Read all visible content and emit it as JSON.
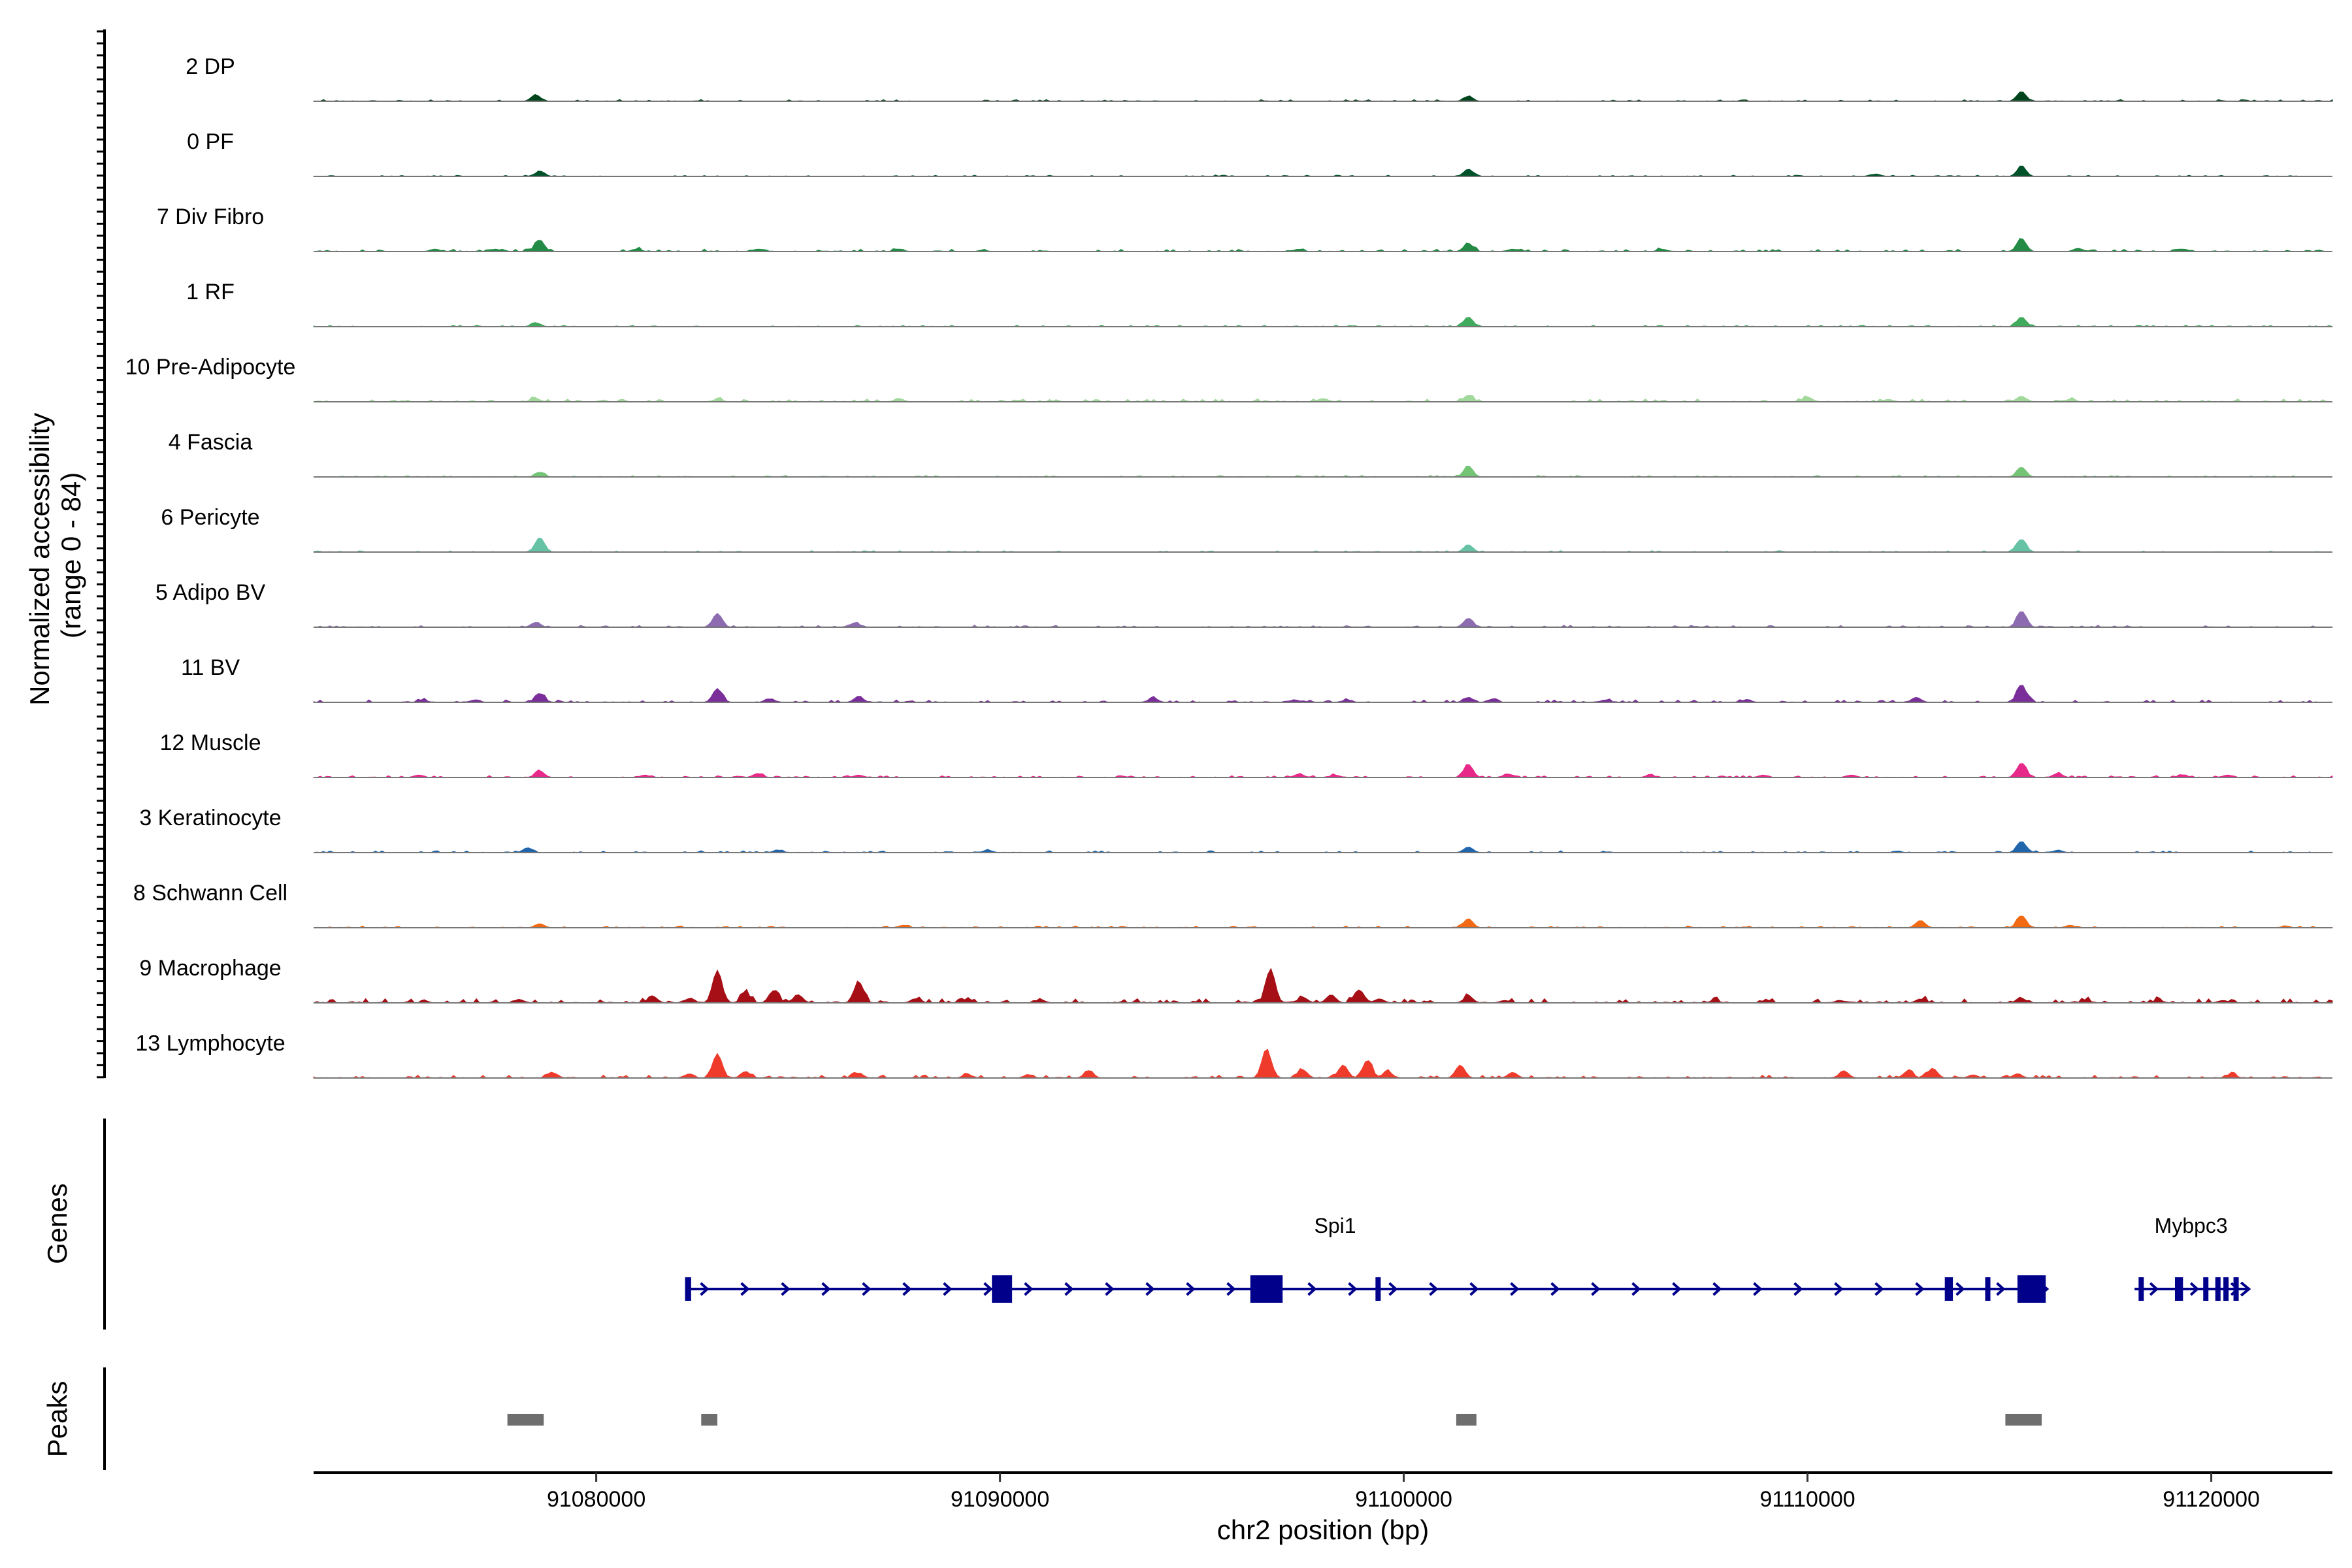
{
  "chart_data": {
    "type": "area",
    "ylabel": "Normalized accessibility",
    "ylabel_range": "(range 0 - 84)",
    "ylim": [
      0,
      84
    ],
    "xlabel": "chr2 position (bp)",
    "xlim": [
      91073000,
      91123000
    ],
    "xticks": [
      91080000,
      91090000,
      91100000,
      91110000,
      91120000
    ],
    "xtick_labels": [
      "91080000",
      "91090000",
      "91100000",
      "91110000",
      "91120000"
    ],
    "tracks": [
      {
        "name": "2 DP",
        "color": "#00441b",
        "noise": 0.035,
        "peaks": [
          [
            91078500,
            8
          ],
          [
            91101600,
            6
          ],
          [
            91115300,
            12
          ]
        ]
      },
      {
        "name": "0 PF",
        "color": "#00522a",
        "noise": 0.03,
        "peaks": [
          [
            91078600,
            6
          ],
          [
            91101600,
            9
          ],
          [
            91111700,
            3
          ],
          [
            91115300,
            12
          ]
        ]
      },
      {
        "name": "7 Div Fibro",
        "color": "#238b45",
        "noise": 0.05,
        "peaks": [
          [
            91076000,
            3
          ],
          [
            91077500,
            3
          ],
          [
            91078600,
            14
          ],
          [
            91081000,
            3
          ],
          [
            91084000,
            3
          ],
          [
            91087500,
            3
          ],
          [
            91097400,
            3
          ],
          [
            91101600,
            10
          ],
          [
            91102700,
            3
          ],
          [
            91106400,
            3
          ],
          [
            91115300,
            16
          ],
          [
            91116700,
            4
          ],
          [
            91119300,
            3
          ]
        ]
      },
      {
        "name": "1 RF",
        "color": "#41ab5d",
        "noise": 0.03,
        "peaks": [
          [
            91078500,
            5
          ],
          [
            91101600,
            12
          ],
          [
            91115300,
            12
          ]
        ]
      },
      {
        "name": "10 Pre-Adipocyte",
        "color": "#a1d99b",
        "noise": 0.06,
        "peaks": [
          [
            91078500,
            4
          ],
          [
            91083000,
            3
          ],
          [
            91087500,
            4
          ],
          [
            91098000,
            4
          ],
          [
            91101600,
            8
          ],
          [
            91110000,
            6
          ],
          [
            91112000,
            3
          ],
          [
            91115300,
            7
          ],
          [
            91116500,
            3
          ]
        ]
      },
      {
        "name": "4 Fascia",
        "color": "#74c476",
        "noise": 0.03,
        "peaks": [
          [
            91078600,
            6
          ],
          [
            91101600,
            13
          ],
          [
            91115300,
            12
          ]
        ]
      },
      {
        "name": "6 Pericyte",
        "color": "#66c2a5",
        "noise": 0.03,
        "peaks": [
          [
            91078600,
            18
          ],
          [
            91101600,
            9
          ],
          [
            91115300,
            16
          ]
        ]
      },
      {
        "name": "5 Adipo BV",
        "color": "#8c6bb1",
        "noise": 0.04,
        "peaks": [
          [
            91078500,
            6
          ],
          [
            91083000,
            17
          ],
          [
            91086400,
            5
          ],
          [
            91101600,
            11
          ],
          [
            91115300,
            20
          ]
        ]
      },
      {
        "name": "11 BV",
        "color": "#7a2e99",
        "noise": 0.05,
        "peaks": [
          [
            91075700,
            3
          ],
          [
            91077000,
            3
          ],
          [
            91078600,
            11
          ],
          [
            91083000,
            17
          ],
          [
            91084300,
            4
          ],
          [
            91086500,
            7
          ],
          [
            91093800,
            5
          ],
          [
            91097300,
            3
          ],
          [
            91098600,
            3
          ],
          [
            91101600,
            6
          ],
          [
            91102200,
            4
          ],
          [
            91105000,
            3
          ],
          [
            91108500,
            3
          ],
          [
            91112700,
            6
          ],
          [
            91115300,
            22
          ]
        ]
      },
      {
        "name": "12 Muscle",
        "color": "#e7298a",
        "noise": 0.04,
        "peaks": [
          [
            91075600,
            3
          ],
          [
            91078600,
            8
          ],
          [
            91081200,
            3
          ],
          [
            91084000,
            5
          ],
          [
            91086500,
            3
          ],
          [
            91097400,
            4
          ],
          [
            91098300,
            3
          ],
          [
            91101600,
            16
          ],
          [
            91102600,
            4
          ],
          [
            91106100,
            3
          ],
          [
            91108900,
            3
          ],
          [
            91111100,
            3
          ],
          [
            91115300,
            18
          ],
          [
            91116200,
            5
          ],
          [
            91119300,
            3
          ],
          [
            91120400,
            3
          ]
        ]
      },
      {
        "name": "3 Keratinocyte",
        "color": "#2166ac",
        "noise": 0.04,
        "peaks": [
          [
            91078300,
            6
          ],
          [
            91084500,
            3
          ],
          [
            91089700,
            3
          ],
          [
            91101600,
            7
          ],
          [
            91115300,
            14
          ],
          [
            91116200,
            3
          ]
        ]
      },
      {
        "name": "8 Schwann Cell",
        "color": "#f16913",
        "noise": 0.04,
        "peaks": [
          [
            91078600,
            5
          ],
          [
            91087600,
            3
          ],
          [
            91101600,
            11
          ],
          [
            91112800,
            9
          ],
          [
            91115300,
            15
          ],
          [
            91116500,
            3
          ]
        ]
      },
      {
        "name": "9 Macrophage",
        "color": "#a50f15",
        "noise": 0.09,
        "peaks": [
          [
            91078100,
            4
          ],
          [
            91081400,
            8
          ],
          [
            91082300,
            5
          ],
          [
            91083000,
            40
          ],
          [
            91083700,
            12
          ],
          [
            91084400,
            15
          ],
          [
            91085000,
            10
          ],
          [
            91086500,
            26
          ],
          [
            91087900,
            5
          ],
          [
            91089100,
            4
          ],
          [
            91091000,
            4
          ],
          [
            91096700,
            42
          ],
          [
            91097500,
            7
          ],
          [
            91098200,
            10
          ],
          [
            91098900,
            16
          ],
          [
            91099400,
            5
          ],
          [
            91101600,
            8
          ],
          [
            91102500,
            3
          ],
          [
            91107700,
            3
          ],
          [
            91110800,
            3
          ],
          [
            91112800,
            5
          ],
          [
            91115300,
            5
          ],
          [
            91116900,
            3
          ],
          [
            91118700,
            3
          ],
          [
            91120300,
            3
          ]
        ]
      },
      {
        "name": "13 Lymphocyte",
        "color": "#ef3b2c",
        "noise": 0.06,
        "peaks": [
          [
            91078900,
            7
          ],
          [
            91082300,
            5
          ],
          [
            91083000,
            30
          ],
          [
            91083700,
            8
          ],
          [
            91086500,
            6
          ],
          [
            91089200,
            4
          ],
          [
            91090700,
            4
          ],
          [
            91092200,
            9
          ],
          [
            91096600,
            36
          ],
          [
            91097500,
            10
          ],
          [
            91098500,
            16
          ],
          [
            91099100,
            22
          ],
          [
            91099600,
            8
          ],
          [
            91101400,
            16
          ],
          [
            91102700,
            7
          ],
          [
            91110900,
            9
          ],
          [
            91112500,
            9
          ],
          [
            91113100,
            12
          ],
          [
            91114100,
            4
          ],
          [
            91115200,
            5
          ],
          [
            91120500,
            5
          ]
        ]
      }
    ],
    "genes_label": "Genes",
    "genes": [
      {
        "name": "Spi1",
        "strand": "+",
        "start": 91082200,
        "end": 91115900,
        "exons": [
          [
            91082200,
            91082350
          ],
          [
            91089800,
            91090300
          ],
          [
            91096200,
            91097000
          ],
          [
            91099300,
            91099400
          ],
          [
            91113400,
            91113600
          ],
          [
            91114400,
            91114500
          ],
          [
            91115200,
            91115900
          ]
        ]
      },
      {
        "name": "Mybpc3",
        "strand": "+",
        "start": 91118100,
        "end": 91120900,
        "exons": [
          [
            91118200,
            91118300
          ],
          [
            91119100,
            91119300
          ],
          [
            91119800,
            91119900
          ],
          [
            91120100,
            91120200
          ],
          [
            91120300,
            91120400
          ],
          [
            91120550,
            91120650
          ]
        ]
      }
    ],
    "peaks_label": "Peaks",
    "peak_regions": [
      [
        91077800,
        91078700
      ],
      [
        91082600,
        91083000
      ],
      [
        91101300,
        91101800
      ],
      [
        91114900,
        91115800
      ]
    ]
  }
}
